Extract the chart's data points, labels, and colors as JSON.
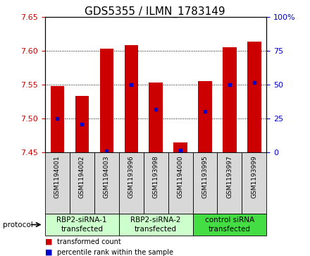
{
  "title": "GDS5355 / ILMN_1783149",
  "samples": [
    "GSM1194001",
    "GSM1194002",
    "GSM1194003",
    "GSM1193996",
    "GSM1193998",
    "GSM1194000",
    "GSM1193995",
    "GSM1193997",
    "GSM1193999"
  ],
  "bar_tops": [
    7.548,
    7.533,
    7.603,
    7.608,
    7.553,
    7.465,
    7.555,
    7.605,
    7.613
  ],
  "bar_bottom": 7.45,
  "blue_markers": [
    7.5,
    7.492,
    7.452,
    7.55,
    7.513,
    7.453,
    7.51,
    7.55,
    7.553
  ],
  "ylim_left": [
    7.45,
    7.65
  ],
  "ylim_right": [
    0,
    100
  ],
  "yticks_left": [
    7.45,
    7.5,
    7.55,
    7.6,
    7.65
  ],
  "yticks_right": [
    0,
    25,
    50,
    75,
    100
  ],
  "ytick_labels_right": [
    "0",
    "25",
    "50",
    "75",
    "100%"
  ],
  "bar_color": "#cc0000",
  "blue_color": "#0000cc",
  "plot_bg": "#ffffff",
  "groups": [
    {
      "label": "RBP2-siRNA-1\ntransfected",
      "start": 0,
      "end": 2,
      "color": "#ccffcc"
    },
    {
      "label": "RBP2-siRNA-2\ntransfected",
      "start": 3,
      "end": 5,
      "color": "#ccffcc"
    },
    {
      "label": "control siRNA\ntransfected",
      "start": 6,
      "end": 8,
      "color": "#44dd44"
    }
  ],
  "protocol_label": "protocol",
  "legend_items": [
    {
      "color": "#cc0000",
      "label": "transformed count"
    },
    {
      "color": "#0000cc",
      "label": "percentile rank within the sample"
    }
  ],
  "left_tick_color": "#cc0000",
  "right_tick_color": "#0000cc",
  "title_fontsize": 11,
  "tick_fontsize": 8,
  "sample_fontsize": 6.5,
  "group_fontsize": 7.5
}
